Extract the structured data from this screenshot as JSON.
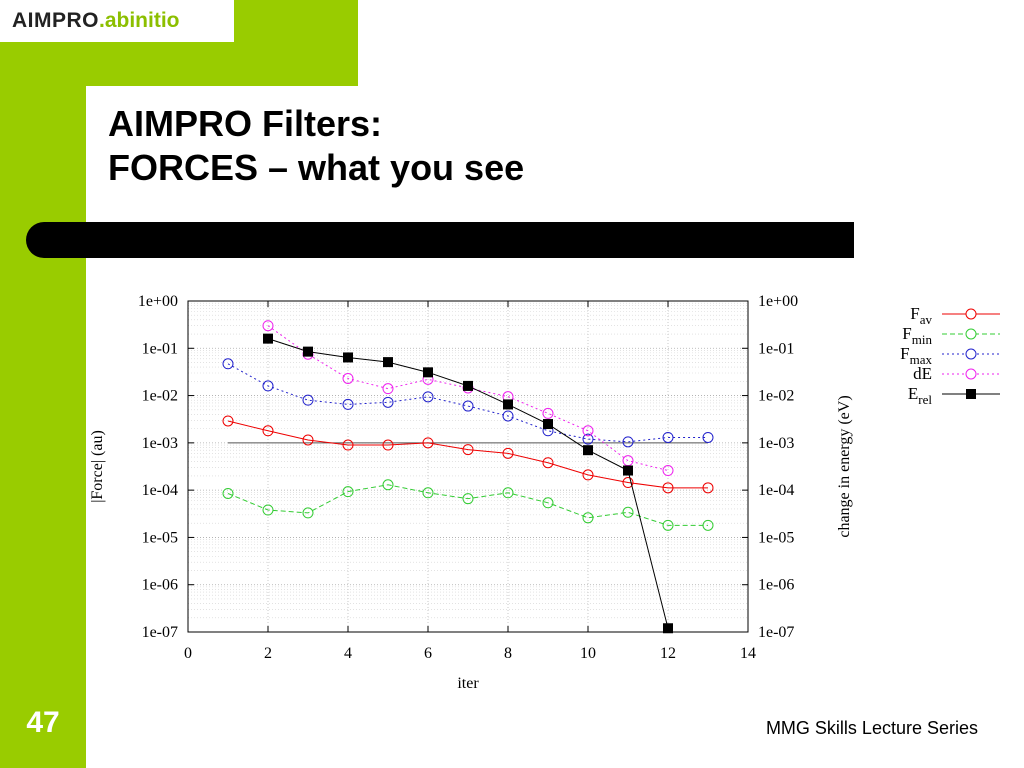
{
  "logo": {
    "part1": "AIMPRO",
    "part2": ".abinitio"
  },
  "title": {
    "line1": "AIMPRO Filters:",
    "line2": "FORCES – what you see"
  },
  "slide_number": "47",
  "footer": "MMG Skills Lecture Series",
  "colors": {
    "accent": "#99cc00",
    "bar": "#000000"
  },
  "chart_data": {
    "type": "line",
    "xlabel": "iter",
    "ylabel": "|Force| (au)",
    "y2label": "change in energy (eV)",
    "xlim": [
      0,
      14
    ],
    "ylim": [
      1e-07,
      1
    ],
    "yscale": "log",
    "grid": true,
    "legend_position": "right",
    "x_ticks": [
      "0",
      "2",
      "4",
      "6",
      "8",
      "10",
      "12",
      "14"
    ],
    "y_ticks": [
      "1e-07",
      "1e-06",
      "1e-05",
      "1e-04",
      "1e-03",
      "1e-02",
      "1e-01",
      "1e+00"
    ],
    "threshold_line": {
      "value": 0.001,
      "x": [
        1,
        13
      ],
      "color": "#555555"
    },
    "series": [
      {
        "name": "F",
        "sub": "av",
        "color": "#ee0000",
        "dash": "",
        "marker": "circle",
        "x": [
          1,
          2,
          3,
          4,
          5,
          6,
          7,
          8,
          9,
          10,
          11,
          12,
          13
        ],
        "y": [
          0.0029,
          0.0018,
          0.00115,
          0.0009,
          0.0009,
          0.001,
          0.00072,
          0.0006,
          0.00038,
          0.00021,
          0.000145,
          0.000112,
          0.000112
        ]
      },
      {
        "name": "F",
        "sub": "min",
        "color": "#33cc33",
        "dash": "5,3",
        "marker": "circle",
        "x": [
          1,
          2,
          3,
          4,
          5,
          6,
          7,
          8,
          9,
          10,
          11,
          12,
          13
        ],
        "y": [
          8.5e-05,
          3.8e-05,
          3.3e-05,
          9.3e-05,
          0.00013,
          8.8e-05,
          6.6e-05,
          8.8e-05,
          5.4e-05,
          2.6e-05,
          3.4e-05,
          1.8e-05,
          1.8e-05
        ]
      },
      {
        "name": "F",
        "sub": "max",
        "color": "#2222cc",
        "dash": "2,3",
        "marker": "circle",
        "x": [
          1,
          2,
          3,
          4,
          5,
          6,
          7,
          8,
          9,
          10,
          11,
          12,
          13
        ],
        "y": [
          0.047,
          0.016,
          0.008,
          0.0065,
          0.0072,
          0.0094,
          0.006,
          0.0037,
          0.0018,
          0.0012,
          0.00105,
          0.0013,
          0.0013
        ]
      },
      {
        "name": "dE",
        "sub": "",
        "color": "#ee22ee",
        "dash": "2,3",
        "marker": "circle",
        "x": [
          2,
          3,
          4,
          5,
          6,
          7,
          8,
          9,
          10,
          11,
          12
        ],
        "y": [
          0.3,
          0.075,
          0.023,
          0.014,
          0.022,
          0.0145,
          0.0095,
          0.0042,
          0.0018,
          0.00042,
          0.00026
        ]
      },
      {
        "name": "E",
        "sub": "rel",
        "color": "#000000",
        "dash": "",
        "marker": "square",
        "x": [
          2,
          3,
          4,
          5,
          6,
          7,
          8,
          9,
          10,
          11,
          12
        ],
        "y": [
          0.16,
          0.085,
          0.064,
          0.051,
          0.031,
          0.016,
          0.0065,
          0.0025,
          0.0007,
          0.00026,
          1.2e-07
        ]
      }
    ]
  }
}
